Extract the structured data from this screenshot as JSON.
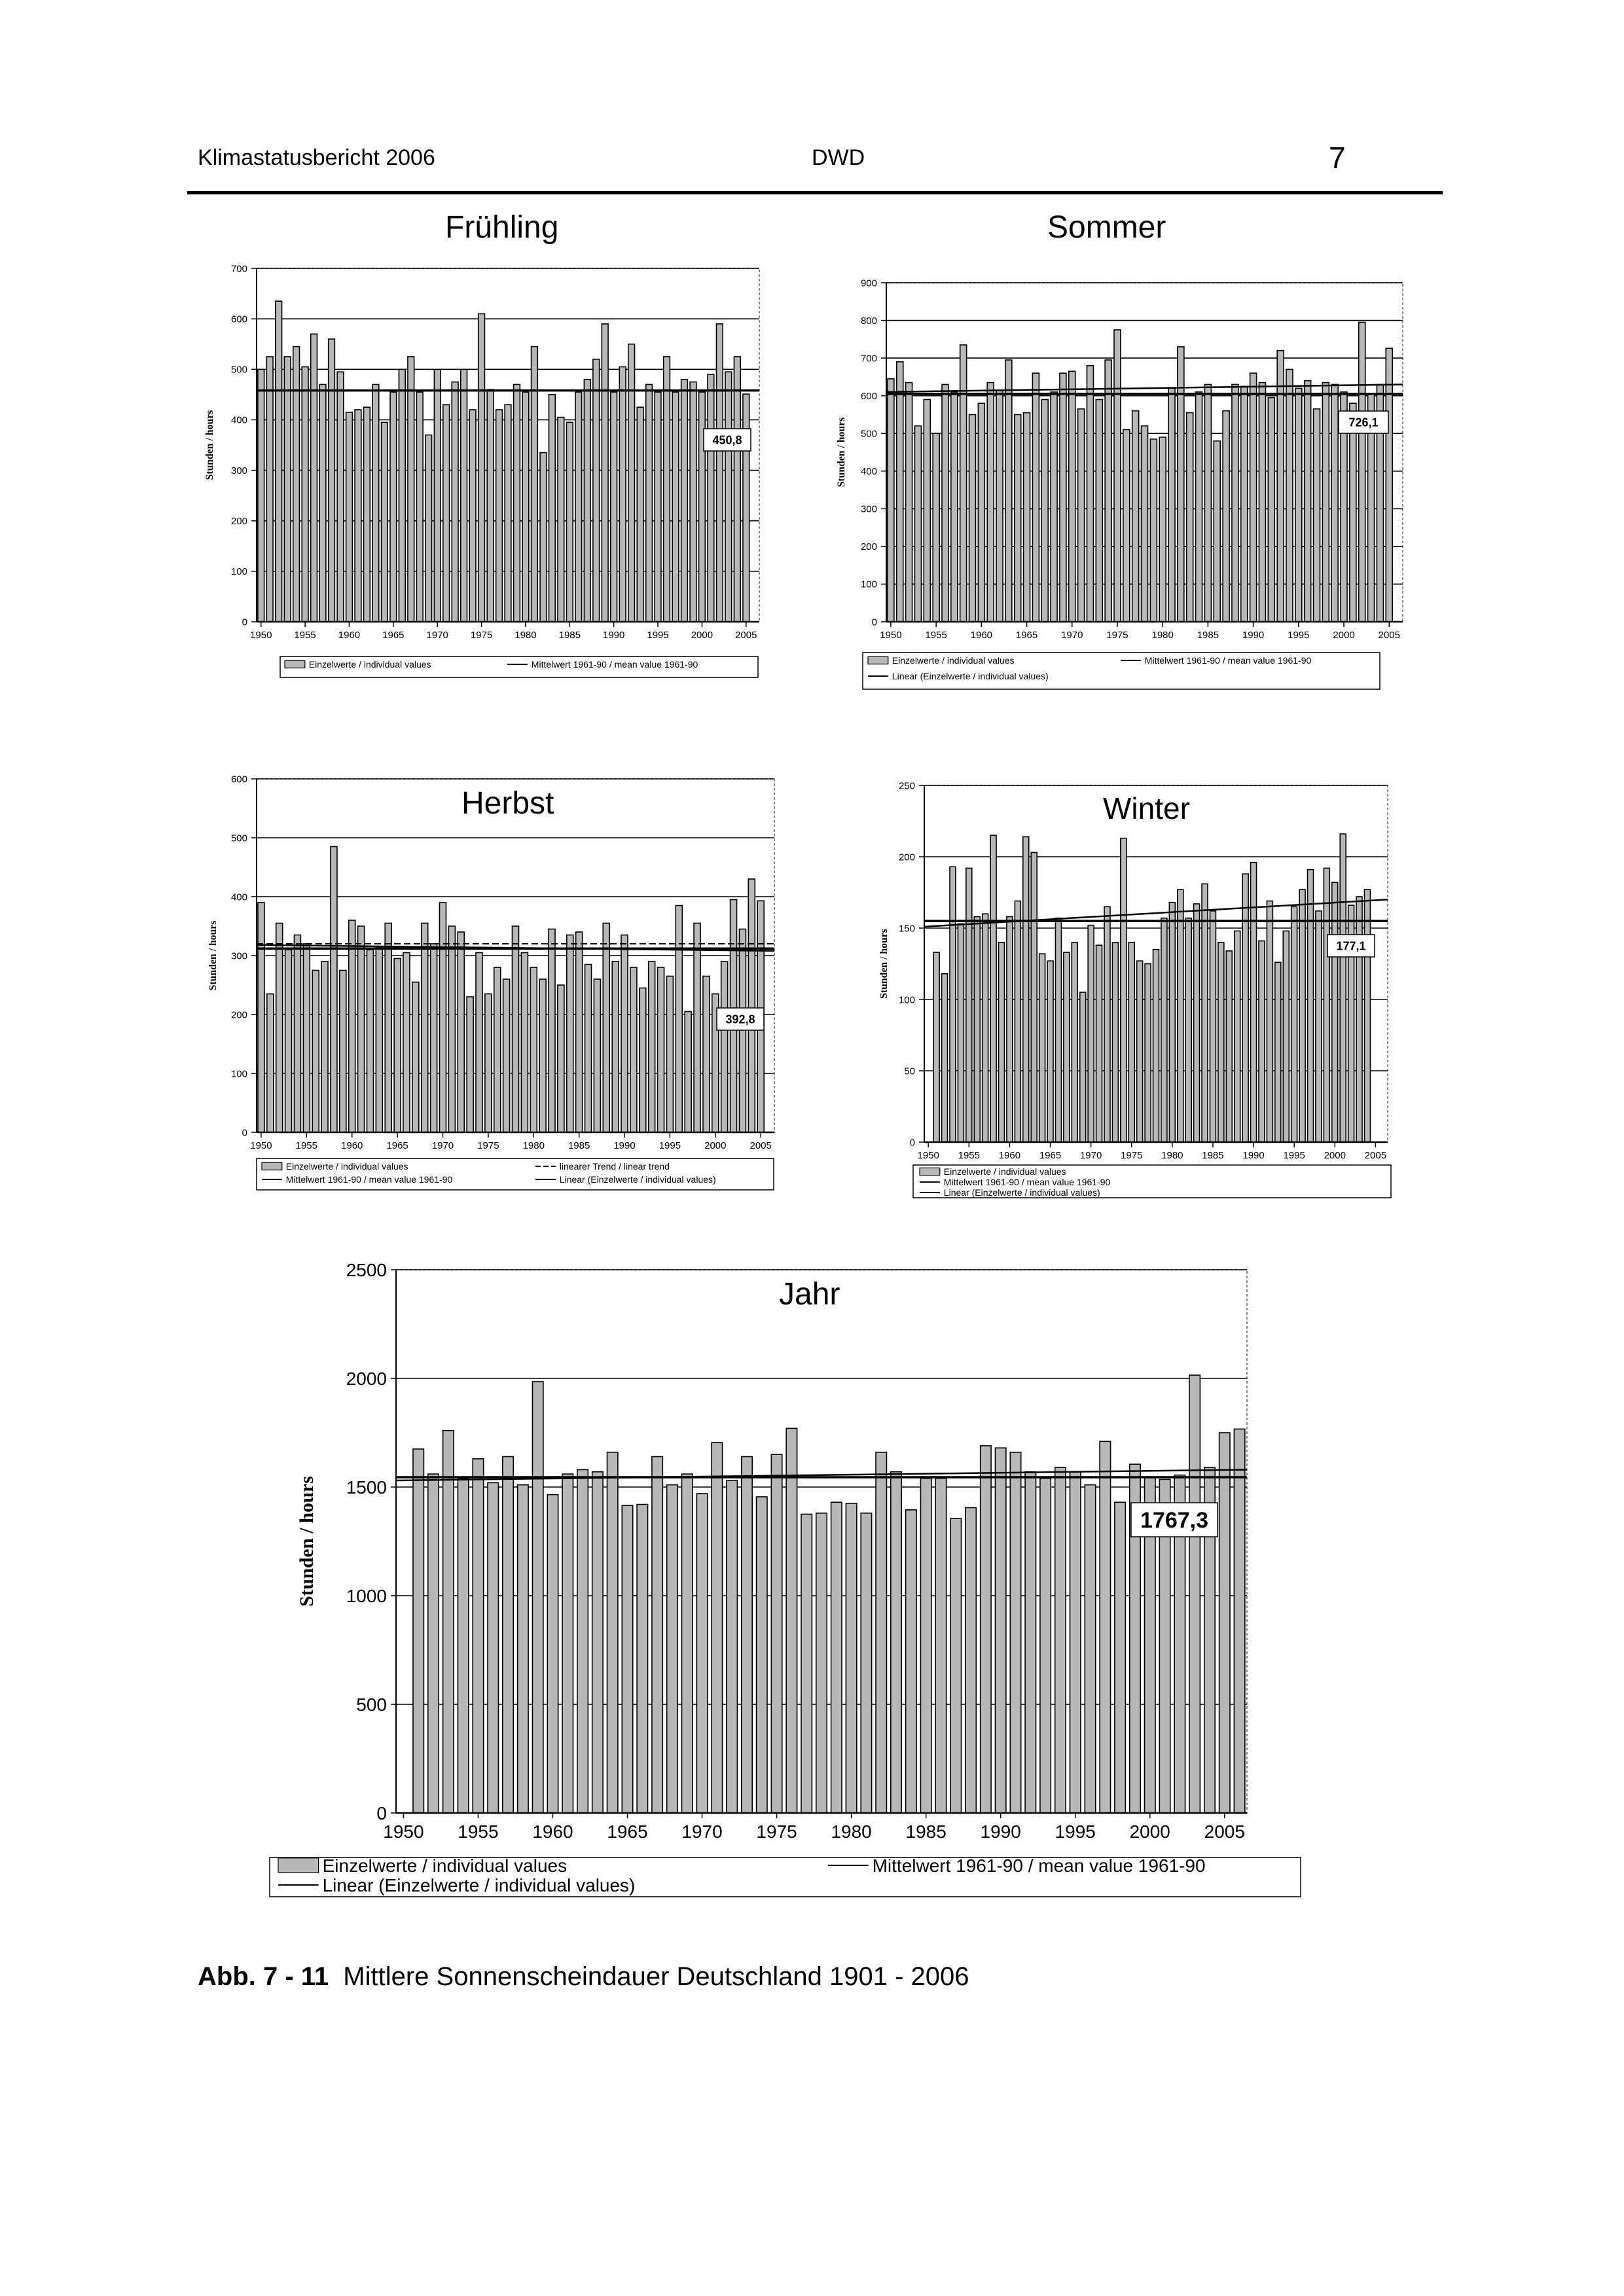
{
  "header": {
    "left": "Klimastatusbericht 2006",
    "center": "DWD",
    "page_number": "7"
  },
  "caption": {
    "label": "Abb. 7 - 11",
    "text": "Mittlere Sonnenscheindauer Deutschland 1901 - 2006"
  },
  "chart_data": [
    {
      "id": "fruehling",
      "type": "bar",
      "title": "Frühling",
      "ylabel": "Stunden / hours",
      "ylim": [
        0,
        700
      ],
      "yticks": [
        0,
        100,
        200,
        300,
        400,
        500,
        600,
        700
      ],
      "xticks": [
        "1950",
        "1955",
        "1960",
        "1965",
        "1970",
        "1975",
        "1980",
        "1985",
        "1990",
        "1995",
        "2000",
        "2005"
      ],
      "x_start": 1950,
      "values": [
        500,
        525,
        635,
        525,
        545,
        505,
        570,
        470,
        560,
        495,
        415,
        420,
        425,
        470,
        395,
        455,
        500,
        525,
        455,
        370,
        500,
        430,
        475,
        500,
        420,
        610,
        460,
        420,
        430,
        470,
        455,
        545,
        335,
        450,
        405,
        395,
        455,
        480,
        520,
        590,
        455,
        505,
        550,
        425,
        470,
        455,
        525,
        455,
        480,
        475,
        455,
        490,
        590,
        495,
        525,
        451
      ],
      "mean_value": 458,
      "data_label": "450,8",
      "legend": [
        "Einzelwerte / individual values",
        "Mittelwert 1961-90 / mean value 1961-90"
      ]
    },
    {
      "id": "sommer",
      "type": "bar",
      "title": "Sommer",
      "ylabel": "Stunden / hours",
      "ylim": [
        0,
        900
      ],
      "yticks": [
        0,
        100,
        200,
        300,
        400,
        500,
        600,
        700,
        800,
        900
      ],
      "xticks": [
        "1950",
        "1955",
        "1960",
        "1965",
        "1970",
        "1975",
        "1980",
        "1985",
        "1990",
        "1995",
        "2000",
        "2005"
      ],
      "x_start": 1950,
      "values": [
        645,
        690,
        635,
        520,
        590,
        500,
        630,
        610,
        735,
        550,
        580,
        635,
        615,
        695,
        550,
        555,
        660,
        590,
        610,
        660,
        665,
        565,
        680,
        590,
        695,
        775,
        510,
        560,
        520,
        485,
        490,
        620,
        730,
        555,
        610,
        630,
        480,
        560,
        630,
        625,
        660,
        635,
        595,
        720,
        670,
        620,
        640,
        565,
        635,
        630,
        610,
        580,
        795,
        605,
        630,
        726
      ],
      "mean_value": 605,
      "trend": [
        610,
        630
      ],
      "data_label": "726,1",
      "legend": [
        "Einzelwerte / individual values",
        "Mittelwert 1961-90 / mean value 1961-90",
        "Linear (Einzelwerte / individual values)"
      ]
    },
    {
      "id": "herbst",
      "type": "bar",
      "title": "Herbst",
      "ylabel": "Stunden / hours",
      "ylim": [
        0,
        600
      ],
      "yticks": [
        0,
        100,
        200,
        300,
        400,
        500,
        600
      ],
      "xticks": [
        "1950",
        "1955",
        "1960",
        "1965",
        "1970",
        "1975",
        "1980",
        "1985",
        "1990",
        "1995",
        "2000",
        "2005"
      ],
      "x_start": 1950,
      "values": [
        390,
        235,
        355,
        310,
        335,
        320,
        275,
        290,
        485,
        275,
        360,
        350,
        310,
        315,
        355,
        295,
        305,
        255,
        355,
        320,
        390,
        350,
        340,
        230,
        305,
        235,
        280,
        260,
        350,
        305,
        280,
        260,
        345,
        250,
        335,
        340,
        285,
        260,
        355,
        290,
        335,
        280,
        245,
        290,
        280,
        265,
        385,
        205,
        355,
        265,
        235,
        290,
        395,
        345,
        430,
        393
      ],
      "mean_value": 312,
      "mean_value_2": 320,
      "trend": [
        318,
        308
      ],
      "data_label": "392,8",
      "legend": [
        "Einzelwerte / individual values",
        "linearer Trend / linear trend",
        "Mittelwert 1961-90 / mean value 1961-90",
        "Linear (Einzelwerte / individual values)"
      ]
    },
    {
      "id": "winter",
      "type": "bar",
      "title": "Winter",
      "ylabel": "Stunden / hours",
      "ylim": [
        0,
        250
      ],
      "yticks": [
        0,
        50,
        100,
        150,
        200,
        250
      ],
      "xticks": [
        "1950",
        "1955",
        "1960",
        "1965",
        "1970",
        "1975",
        "1980",
        "1985",
        "1990",
        "1995",
        "2000",
        "2005"
      ],
      "x_start": 1951,
      "values": [
        133,
        118,
        193,
        153,
        192,
        158,
        160,
        215,
        140,
        158,
        169,
        214,
        203,
        132,
        127,
        157,
        133,
        140,
        105,
        152,
        138,
        165,
        140,
        213,
        140,
        127,
        125,
        135,
        157,
        168,
        177,
        157,
        167,
        181,
        162,
        140,
        134,
        148,
        188,
        196,
        141,
        169,
        126,
        148,
        165,
        177,
        191,
        162,
        192,
        182,
        216,
        166,
        172,
        177
      ],
      "mean_value": 155,
      "trend": [
        151,
        170
      ],
      "data_label": "177,1",
      "legend": [
        "Einzelwerte / individual values",
        "Mittelwert 1961-90 / mean value 1961-90",
        "Linear (Einzelwerte / individual values)"
      ]
    },
    {
      "id": "jahr",
      "type": "bar",
      "title": "Jahr",
      "ylabel": "Stunden / hours",
      "ylim": [
        0,
        2500
      ],
      "yticks": [
        0,
        500,
        1000,
        1500,
        2000,
        2500
      ],
      "xticks": [
        "1950",
        "1955",
        "1960",
        "1965",
        "1970",
        "1975",
        "1980",
        "1985",
        "1990",
        "1995",
        "2000",
        "2005"
      ],
      "x_start": 1951,
      "values": [
        1675,
        1560,
        1760,
        1540,
        1630,
        1520,
        1640,
        1510,
        1985,
        1465,
        1560,
        1580,
        1570,
        1660,
        1415,
        1420,
        1640,
        1510,
        1560,
        1470,
        1705,
        1530,
        1640,
        1455,
        1650,
        1770,
        1375,
        1380,
        1430,
        1425,
        1380,
        1660,
        1570,
        1395,
        1540,
        1540,
        1355,
        1405,
        1690,
        1680,
        1660,
        1570,
        1540,
        1590,
        1570,
        1510,
        1710,
        1430,
        1605,
        1545,
        1535,
        1555,
        2015,
        1590,
        1750,
        1767
      ],
      "mean_value": 1545,
      "trend": [
        1530,
        1580
      ],
      "data_label": "1767,3",
      "legend": [
        "Einzelwerte / individual values",
        "Mittelwert 1961-90 / mean value 1961-90",
        "Linear (Einzelwerte / individual values)"
      ]
    }
  ]
}
